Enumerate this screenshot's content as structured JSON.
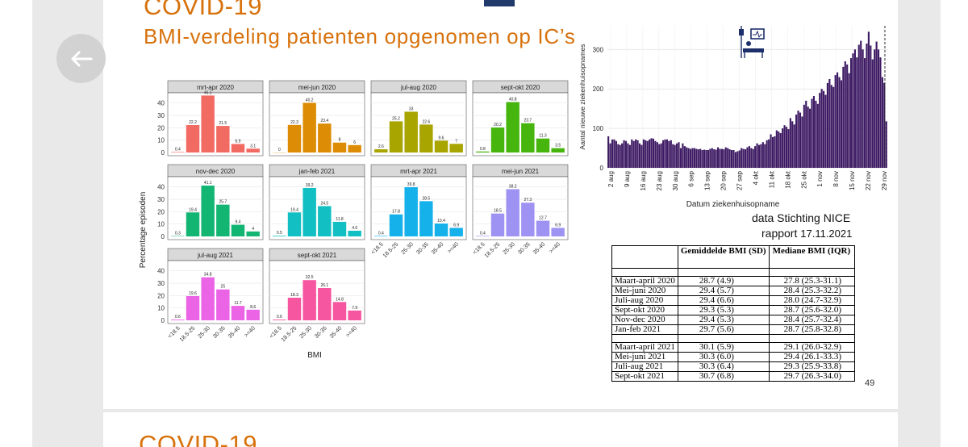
{
  "slide": {
    "title_line1": "COVID-19",
    "title_line2": "BMI-verdeling patienten opgenomen op  IC’s",
    "data_source": "data Stichting NICE",
    "report_prefix": "rapport",
    "report_date": "17.11.2021",
    "page_number": "49",
    "next_slide_title": "COVID-19"
  },
  "facets": {
    "ylabel": "Percentage episoden",
    "xlabel": "BMI",
    "y_ticks": [
      "0",
      "10",
      "20",
      "30",
      "40"
    ],
    "categories": [
      "<18.5",
      "18.5-25",
      "25-30",
      "30-35",
      "35-40",
      ">=40"
    ]
  },
  "chart_data": [
    {
      "type": "bar",
      "title": "BMI-verdeling patienten opgenomen op IC's",
      "xlabel": "BMI",
      "ylabel": "Percentage episoden",
      "ylim": [
        0,
        47
      ],
      "categories": [
        "<18.5",
        "18.5-25",
        "25-30",
        "30-35",
        "35-40",
        ">=40"
      ],
      "series": [
        {
          "name": "mrt-apr 2020",
          "values": [
            0.4,
            22.2,
            46.1,
            21.5,
            6.9,
            3.1
          ],
          "color": "#f26b63"
        },
        {
          "name": "mei-jun 2020",
          "values": [
            0,
            22.3,
            40.2,
            23.4,
            8,
            6
          ],
          "color": "#dd8c05"
        },
        {
          "name": "jul-aug 2020",
          "values": [
            2.6,
            25.2,
            33,
            22.6,
            9.6,
            7
          ],
          "color": "#a8a400"
        },
        {
          "name": "sept-okt 2020",
          "values": [
            0.8,
            20.2,
            40.8,
            23.7,
            11.3,
            3.5
          ],
          "color": "#46b50d"
        },
        {
          "name": "nov-dec 2020",
          "values": [
            0.3,
            19.4,
            41.1,
            25.7,
            9.4,
            4
          ],
          "color": "#13b573"
        },
        {
          "name": "jan-feb 2021",
          "values": [
            0.5,
            19.4,
            39.2,
            24.5,
            11.8,
            4.6
          ],
          "color": "#12bfc2"
        },
        {
          "name": "mrt-apr 2021",
          "values": [
            0.4,
            17.8,
            39.8,
            28.5,
            10.4,
            6.9
          ],
          "color": "#14b1ea"
        },
        {
          "name": "mei-jun 2021",
          "values": [
            0.4,
            18.5,
            38.2,
            27.3,
            12.7,
            6.9
          ],
          "color": "#9e93f2"
        },
        {
          "name": "jul-aug 2021",
          "values": [
            0.6,
            19.6,
            34.8,
            25,
            11.7,
            8.6
          ],
          "color": "#eb64e6"
        },
        {
          "name": "sept-okt 2021",
          "values": [
            0.6,
            18.3,
            32.5,
            26.1,
            14.8,
            7.9
          ],
          "color": "#f6559f"
        }
      ]
    },
    {
      "type": "bar",
      "title": "Aantal nieuwe ziekenhuisopnames",
      "xlabel": "Datum ziekenhuisopname",
      "ylabel": "Aantal nieuwe ziekenhuisopnames",
      "ylim": [
        0,
        360
      ],
      "y_ticks": [
        0,
        100,
        200,
        300
      ],
      "color": "#3d1a63",
      "x_ticks": [
        "2 aug",
        "9 aug",
        "16 aug",
        "23 aug",
        "30 aug",
        "6 sep",
        "13 sep",
        "20 sep",
        "27 sep",
        "4 okt",
        "11 okt",
        "18 okt",
        "25 okt",
        "1 nov",
        "8 nov",
        "15 nov",
        "22 nov",
        "29 nov"
      ],
      "values": [
        80,
        62,
        72,
        72,
        68,
        60,
        58,
        62,
        70,
        68,
        62,
        58,
        72,
        68,
        72,
        70,
        62,
        58,
        72,
        70,
        68,
        72,
        75,
        74,
        68,
        65,
        60,
        62,
        70,
        72,
        72,
        68,
        70,
        60,
        58,
        62,
        65,
        50,
        62,
        55,
        52,
        50,
        48,
        50,
        50,
        48,
        47,
        48,
        45,
        46,
        45,
        45,
        48,
        50,
        47,
        46,
        52,
        48,
        48,
        47,
        52,
        50,
        47,
        45,
        45,
        40,
        42,
        44,
        50,
        48,
        47,
        52,
        55,
        50,
        48,
        55,
        62,
        58,
        60,
        65,
        60,
        70,
        72,
        85,
        78,
        80,
        95,
        92,
        88,
        100,
        108,
        104,
        98,
        126,
        118,
        110,
        135,
        145,
        140,
        130,
        160,
        170,
        155,
        150,
        175,
        182,
        170,
        162,
        190,
        200,
        195,
        185,
        215,
        225,
        210,
        205,
        235,
        242,
        230,
        222,
        256,
        270,
        262,
        240,
        278,
        290,
        300,
        280,
        312,
        322,
        300,
        278,
        315,
        345,
        310,
        275,
        300,
        320,
        300,
        280,
        230,
        215,
        118
      ]
    }
  ],
  "table": {
    "header_col1": "",
    "header_col2": "Gemiddelde BMI (SD)",
    "header_col3": "Mediane BMI (IQR)",
    "rows": [
      {
        "period": "Maart-april 2020",
        "mean": "28.7 (4.9)",
        "median": "27.8 (25.3-31.1)"
      },
      {
        "period": "Mei-juni 2020",
        "mean": "29.4 (5.7)",
        "median": "28.4 (25.3-32.2)"
      },
      {
        "period": "Juli-aug 2020",
        "mean": "29.4 (6.6)",
        "median": "28.0 (24.7-32.9)"
      },
      {
        "period": "Sept-okt 2020",
        "mean": "29.3 (5.3)",
        "median": "28.7 (25.6-32.0)"
      },
      {
        "period": "Nov-dec 2020",
        "mean": "29.4 (5.3)",
        "median": "28.4 (25.7-32.4)"
      },
      {
        "period": "Jan-feb 2021",
        "mean": "29.7 (5.6)",
        "median": "28.7 (25.8-32.8)"
      },
      {
        "period": "Maart-april 2021",
        "mean": "30.1 (5.9)",
        "median": "29.1 (26.0-32.9)"
      },
      {
        "period": "Mei-juni 2021",
        "mean": "30.3 (6.0)",
        "median": "29.4 (26.1-33.3)"
      },
      {
        "period": "Juli-aug 2021",
        "mean": "30.3 (6.4)",
        "median": "29.3 (25.9-33.8)"
      },
      {
        "period": "Sept-okt 2021",
        "mean": "30.7 (6.8)",
        "median": "29.7 (26.3-34.0)"
      }
    ]
  },
  "icons": {
    "back": "back-arrow-icon",
    "icu": "icu-patient-icon"
  }
}
